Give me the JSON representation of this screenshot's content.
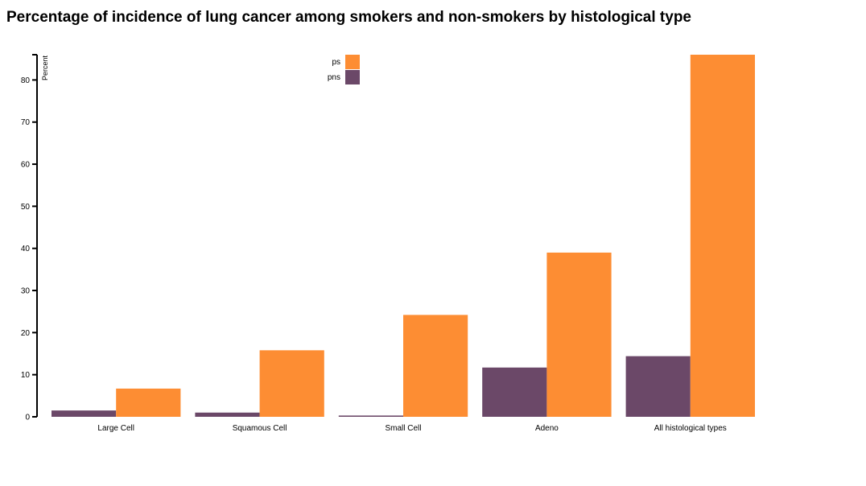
{
  "chart_data": {
    "type": "bar",
    "title": "Percentage of incidence of lung cancer among smokers and non-smokers by histological type",
    "ylabel": "Percent",
    "xlabel": "",
    "ylim": [
      0,
      86
    ],
    "yticks": [
      0,
      10,
      20,
      30,
      40,
      50,
      60,
      70,
      80
    ],
    "categories": [
      "Large Cell",
      "Squamous Cell",
      "Small Cell",
      "Adeno",
      "All histological types"
    ],
    "series": [
      {
        "name": "pns",
        "color": "#6b4868",
        "values": [
          1.5,
          1.0,
          0.3,
          11.7,
          14.4
        ]
      },
      {
        "name": "ps",
        "color": "#fd8d33",
        "values": [
          6.7,
          15.8,
          24.2,
          39.0,
          86.0
        ]
      }
    ],
    "legend": {
      "placement": "top-center",
      "order": [
        "ps",
        "pns"
      ]
    },
    "grid": false
  }
}
